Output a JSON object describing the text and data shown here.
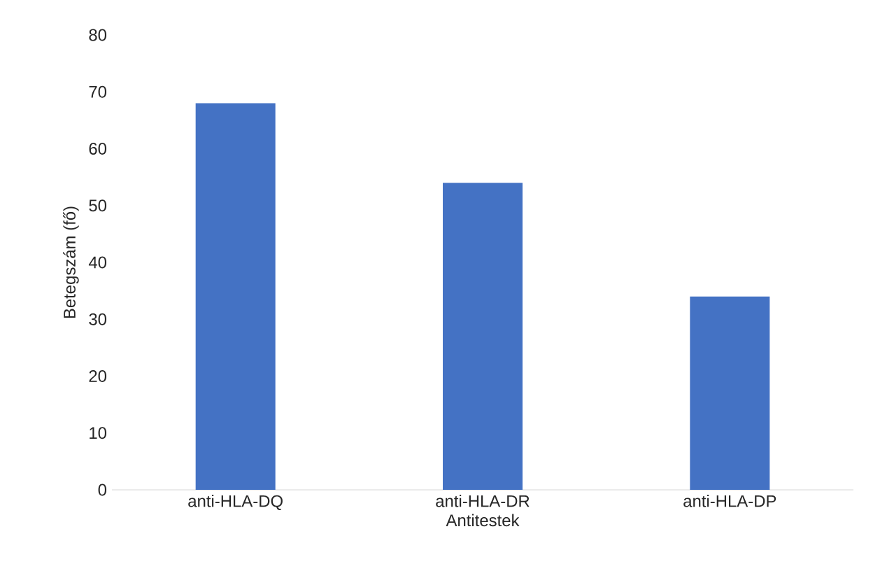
{
  "chart_data": {
    "type": "bar",
    "xlabel": "Antitestek",
    "ylabel": "Betegszám (fő)",
    "categories": [
      "anti-HLA-DQ",
      "anti-HLA-DR",
      "anti-HLA-DP"
    ],
    "values": [
      68,
      54,
      34
    ],
    "color": "#4472c4",
    "ylim": [
      0,
      80
    ],
    "yticks": [
      0,
      10,
      20,
      30,
      40,
      50,
      60,
      70,
      80
    ]
  }
}
